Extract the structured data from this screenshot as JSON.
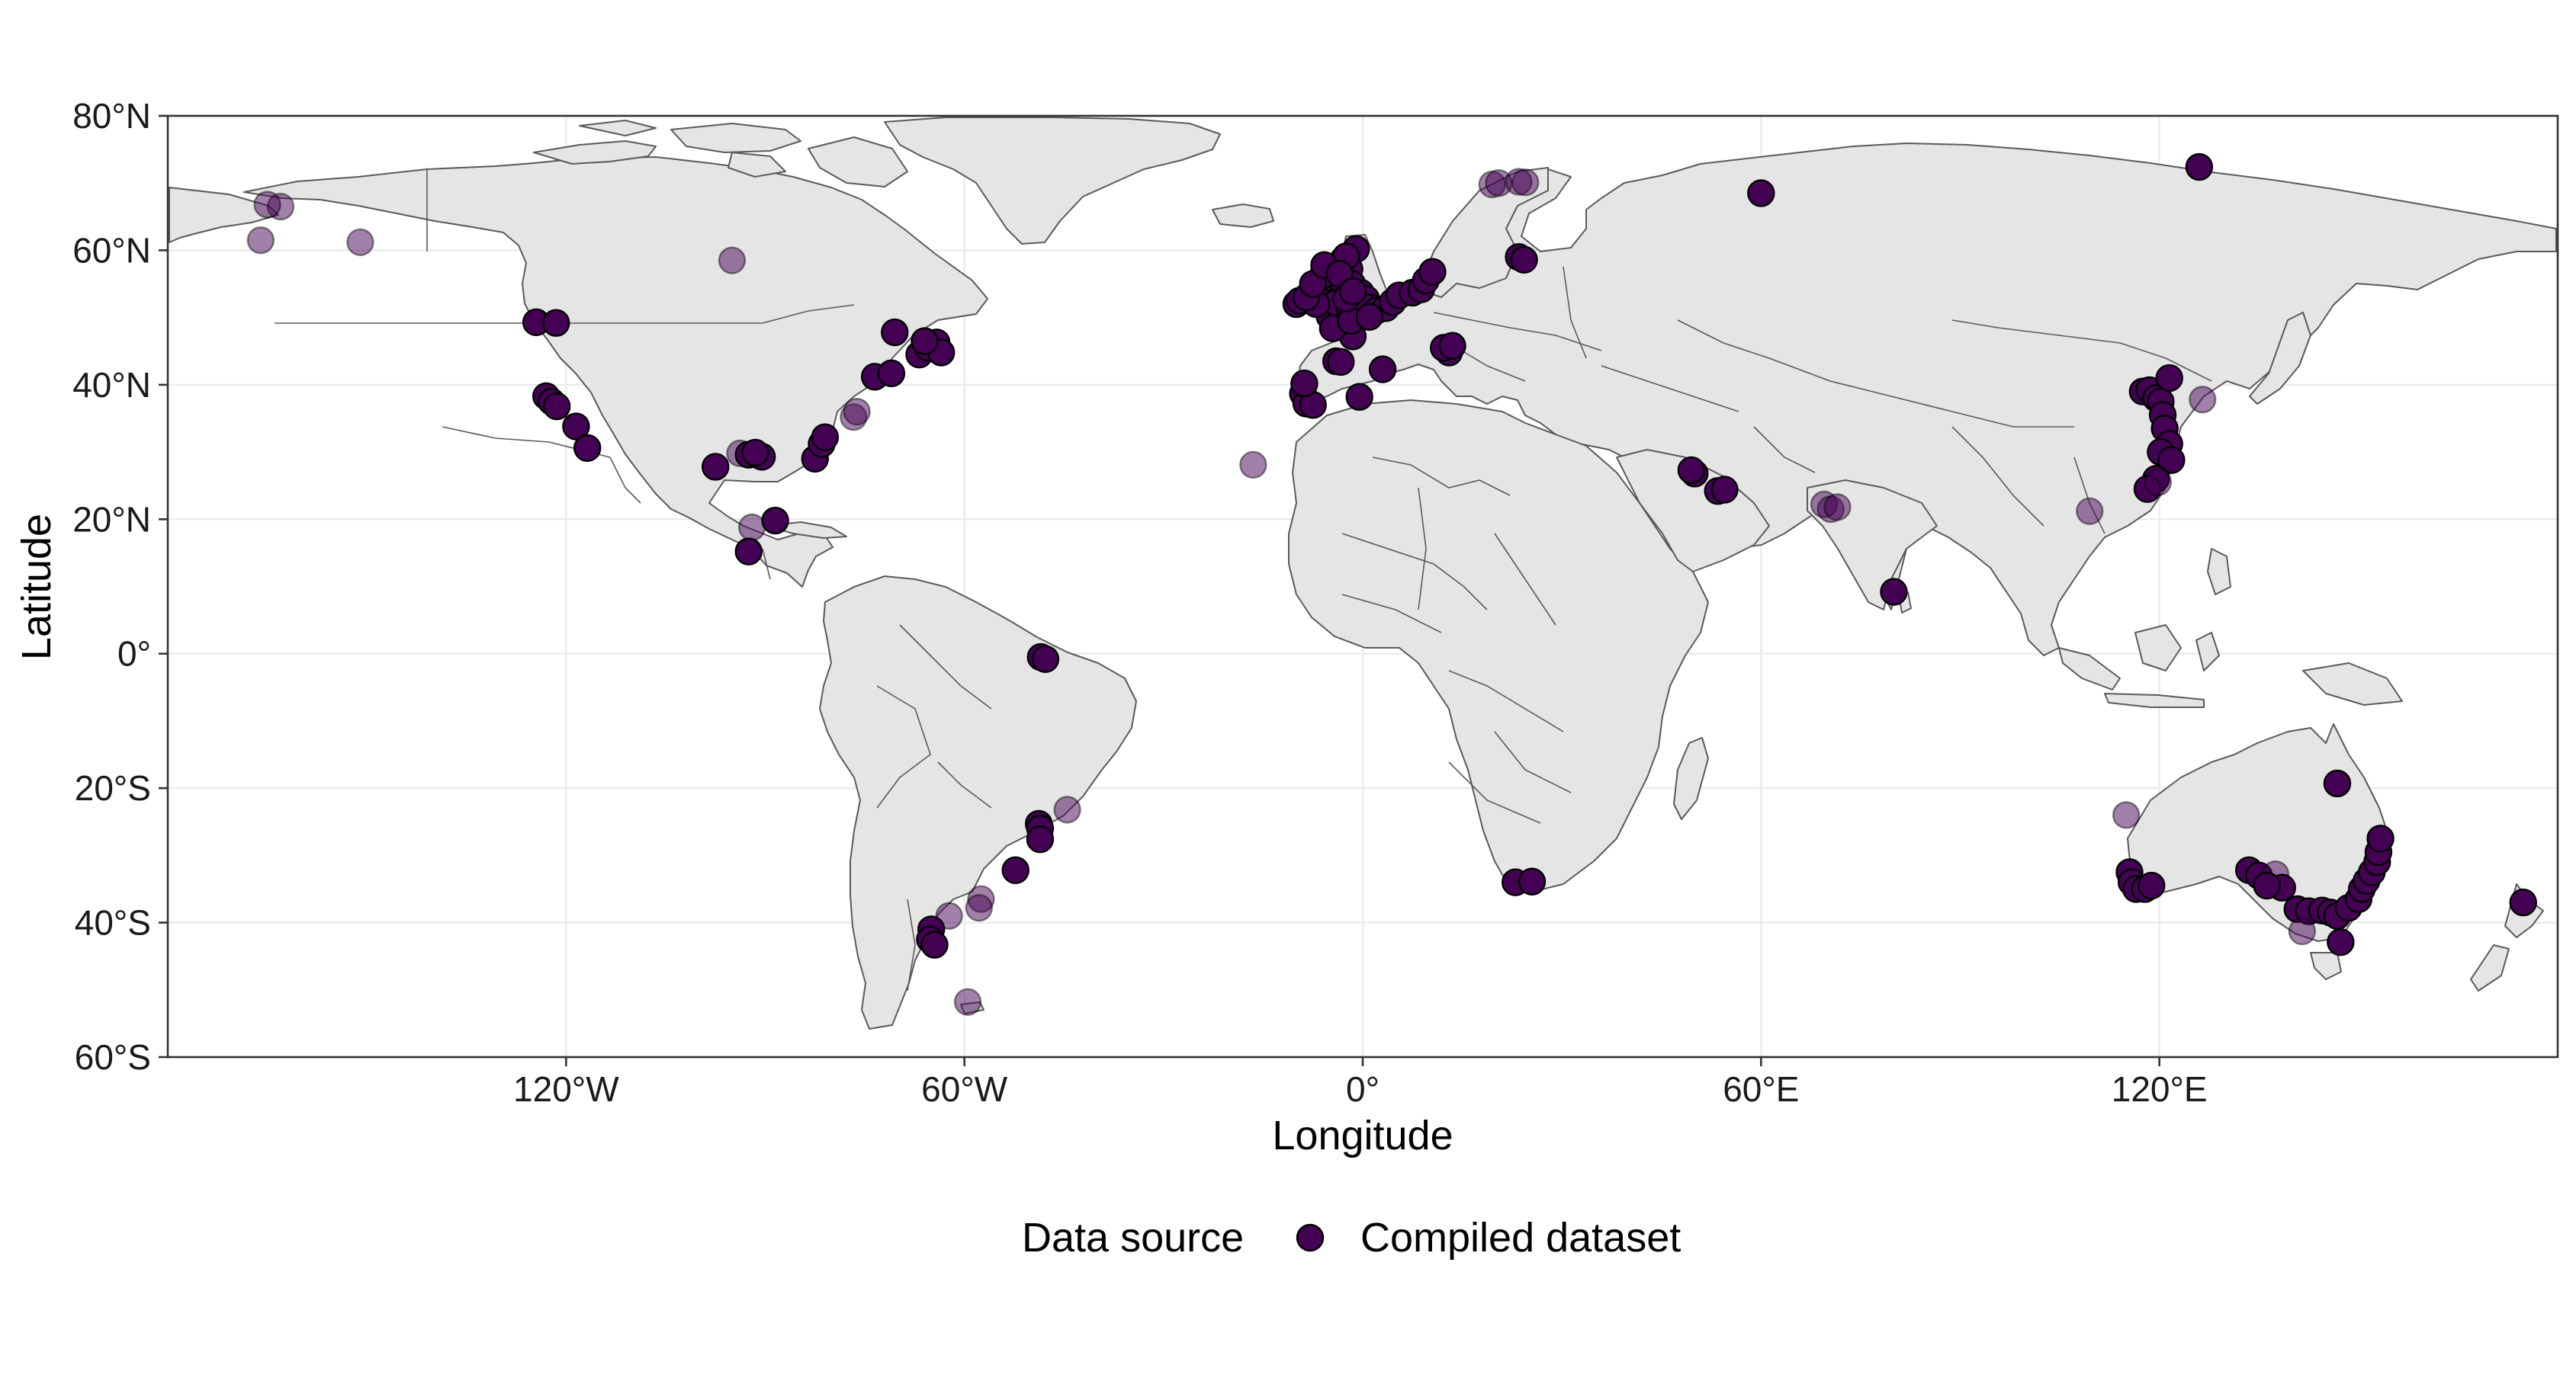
{
  "map": {
    "xlabel": "Longitude",
    "ylabel": "Latitude",
    "x_range": [
      -180,
      180
    ],
    "y_range": [
      -60,
      80
    ],
    "x_ticks": [
      {
        "value": -120,
        "label": "120°W"
      },
      {
        "value": -60,
        "label": "60°W"
      },
      {
        "value": 0,
        "label": "0°"
      },
      {
        "value": 60,
        "label": "60°E"
      },
      {
        "value": 120,
        "label": "120°E"
      }
    ],
    "y_ticks": [
      {
        "value": 80,
        "label": "80°N"
      },
      {
        "value": 60,
        "label": "60°N"
      },
      {
        "value": 40,
        "label": "40°N"
      },
      {
        "value": 20,
        "label": "20°N"
      },
      {
        "value": 0,
        "label": "0°"
      },
      {
        "value": -20,
        "label": "20°S"
      },
      {
        "value": -40,
        "label": "40°S"
      },
      {
        "value": -60,
        "label": "60°S"
      }
    ],
    "grid": true,
    "land_color": "#e5e5e5",
    "border_color": "#5a5a5a"
  },
  "legend": {
    "title": "Data source",
    "entries": [
      {
        "label": "Compiled dataset",
        "color": "#440154"
      }
    ],
    "position": "bottom"
  },
  "chart_data": {
    "type": "scatter",
    "series": [
      {
        "name": "Compiled dataset",
        "color": "#440154",
        "points": [
          {
            "lon": -163,
            "lat": 66.5,
            "o": 0.5
          },
          {
            "lon": -165,
            "lat": 66.8,
            "o": 0.5
          },
          {
            "lon": -166,
            "lat": 61.5,
            "o": 0.5
          },
          {
            "lon": -151,
            "lat": 61.2,
            "o": 0.5
          },
          {
            "lon": -95,
            "lat": 58.5,
            "o": 0.5
          },
          {
            "lon": -124.5,
            "lat": 49.3,
            "o": 1
          },
          {
            "lon": -121.5,
            "lat": 49.2,
            "o": 1
          },
          {
            "lon": -123,
            "lat": 38.3,
            "o": 1
          },
          {
            "lon": -122.2,
            "lat": 37.5,
            "o": 1
          },
          {
            "lon": -121.4,
            "lat": 36.8,
            "o": 1
          },
          {
            "lon": -118.5,
            "lat": 33.8,
            "o": 1
          },
          {
            "lon": -116.8,
            "lat": 30.6,
            "o": 1
          },
          {
            "lon": -97.5,
            "lat": 27.8,
            "o": 1
          },
          {
            "lon": -93.8,
            "lat": 29.8,
            "o": 0.5
          },
          {
            "lon": -92.5,
            "lat": 29.6,
            "o": 1
          },
          {
            "lon": -91.2,
            "lat": 29.6,
            "o": 1
          },
          {
            "lon": -90.5,
            "lat": 29.3,
            "o": 1
          },
          {
            "lon": -91.5,
            "lat": 29.9,
            "o": 1
          },
          {
            "lon": -82.5,
            "lat": 29.0,
            "o": 1
          },
          {
            "lon": -81.5,
            "lat": 31.2,
            "o": 1
          },
          {
            "lon": -81,
            "lat": 32.2,
            "o": 1
          },
          {
            "lon": -76.7,
            "lat": 35.2,
            "o": 0.5
          },
          {
            "lon": -76.2,
            "lat": 36,
            "o": 0.5
          },
          {
            "lon": -73.5,
            "lat": 41.2,
            "o": 1
          },
          {
            "lon": -71,
            "lat": 41.7,
            "o": 1
          },
          {
            "lon": -70.5,
            "lat": 47.8,
            "o": 1
          },
          {
            "lon": -66.8,
            "lat": 44.5,
            "o": 1
          },
          {
            "lon": -65.5,
            "lat": 45.5,
            "o": 1
          },
          {
            "lon": -64.2,
            "lat": 46.3,
            "o": 1
          },
          {
            "lon": -63.5,
            "lat": 44.8,
            "o": 1
          },
          {
            "lon": -66,
            "lat": 46.5,
            "o": 1
          },
          {
            "lon": -92,
            "lat": 18.8,
            "o": 0.5
          },
          {
            "lon": -88.5,
            "lat": 19.8,
            "o": 1
          },
          {
            "lon": -92.5,
            "lat": 15.2,
            "o": 1
          },
          {
            "lon": -48.5,
            "lat": -0.5,
            "o": 1
          },
          {
            "lon": -47.8,
            "lat": -0.8,
            "o": 1
          },
          {
            "lon": -48.8,
            "lat": -25.3,
            "o": 1
          },
          {
            "lon": -48.6,
            "lat": -26.0,
            "o": 1
          },
          {
            "lon": -48.6,
            "lat": -27.6,
            "o": 1
          },
          {
            "lon": -44.5,
            "lat": -23.2,
            "o": 0.5
          },
          {
            "lon": -52.3,
            "lat": -32.2,
            "o": 1
          },
          {
            "lon": -57.5,
            "lat": -36.5,
            "o": 0.5
          },
          {
            "lon": -57.8,
            "lat": -37.8,
            "o": 0.5
          },
          {
            "lon": -62.3,
            "lat": -39.0,
            "o": 0.5
          },
          {
            "lon": -65,
            "lat": -41.0,
            "o": 1
          },
          {
            "lon": -65.2,
            "lat": -42.5,
            "o": 1
          },
          {
            "lon": -64.5,
            "lat": -43.3,
            "o": 1
          },
          {
            "lon": -59.5,
            "lat": -51.8,
            "o": 0.5
          },
          {
            "lon": -16.5,
            "lat": 28.1,
            "o": 0.5
          },
          {
            "lon": -9,
            "lat": 38.7,
            "o": 1
          },
          {
            "lon": -8.5,
            "lat": 37.2,
            "o": 1
          },
          {
            "lon": -7.5,
            "lat": 37.0,
            "o": 1
          },
          {
            "lon": -8.8,
            "lat": 40.2,
            "o": 1
          },
          {
            "lon": -4,
            "lat": 43.5,
            "o": 1
          },
          {
            "lon": -3.3,
            "lat": 43.4,
            "o": 1
          },
          {
            "lon": -0.5,
            "lat": 38.2,
            "o": 1
          },
          {
            "lon": 3,
            "lat": 42.3,
            "o": 1
          },
          {
            "lon": -10,
            "lat": 52,
            "o": 1
          },
          {
            "lon": -9.5,
            "lat": 52.5,
            "o": 1
          },
          {
            "lon": -6.3,
            "lat": 53.3,
            "o": 1
          },
          {
            "lon": -5.5,
            "lat": 54.5,
            "o": 1
          },
          {
            "lon": -4.5,
            "lat": 55.8,
            "o": 1
          },
          {
            "lon": -5,
            "lat": 57.5,
            "o": 1
          },
          {
            "lon": -3,
            "lat": 58.5,
            "o": 1
          },
          {
            "lon": -2,
            "lat": 57.2,
            "o": 1
          },
          {
            "lon": -1.6,
            "lat": 55.0,
            "o": 1
          },
          {
            "lon": -0.3,
            "lat": 53.7,
            "o": 1
          },
          {
            "lon": 0.5,
            "lat": 52.8,
            "o": 1
          },
          {
            "lon": 1.3,
            "lat": 51.5,
            "o": 1
          },
          {
            "lon": -1.4,
            "lat": 50.8,
            "o": 1
          },
          {
            "lon": -3.5,
            "lat": 50.5,
            "o": 1
          },
          {
            "lon": -4.2,
            "lat": 51.5,
            "o": 1
          },
          {
            "lon": -5,
            "lat": 50.2,
            "o": 1
          },
          {
            "lon": -3,
            "lat": 53.4,
            "o": 1
          },
          {
            "lon": -2.8,
            "lat": 54.2,
            "o": 1
          },
          {
            "lon": -1,
            "lat": 60.2,
            "o": 1
          },
          {
            "lon": -2.5,
            "lat": 59.1,
            "o": 1
          },
          {
            "lon": -6,
            "lat": 56.3,
            "o": 1
          },
          {
            "lon": -4,
            "lat": 52.2,
            "o": 1
          },
          {
            "lon": -2,
            "lat": 51.4,
            "o": 1
          },
          {
            "lon": -0.8,
            "lat": 51.2,
            "o": 1
          },
          {
            "lon": 0.2,
            "lat": 51.6,
            "o": 1
          },
          {
            "lon": 2,
            "lat": 51.0,
            "o": 1
          },
          {
            "lon": 3.5,
            "lat": 51.4,
            "o": 1
          },
          {
            "lon": 4.5,
            "lat": 52.3,
            "o": 1
          },
          {
            "lon": 5.5,
            "lat": 53.3,
            "o": 1
          },
          {
            "lon": 7.5,
            "lat": 53.7,
            "o": 1
          },
          {
            "lon": 8.8,
            "lat": 54.2,
            "o": 1
          },
          {
            "lon": 9.5,
            "lat": 55.5,
            "o": 1
          },
          {
            "lon": 10.5,
            "lat": 56.8,
            "o": 1
          },
          {
            "lon": -1.5,
            "lat": 47.2,
            "o": 1
          },
          {
            "lon": -4.5,
            "lat": 48.4,
            "o": 1
          },
          {
            "lon": -1.8,
            "lat": 49.5,
            "o": 1
          },
          {
            "lon": 1,
            "lat": 50.1,
            "o": 1
          },
          {
            "lon": -7,
            "lat": 52.0,
            "o": 1
          },
          {
            "lon": -8.5,
            "lat": 53.0,
            "o": 1
          },
          {
            "lon": -7.5,
            "lat": 55.0,
            "o": 1
          },
          {
            "lon": -5.8,
            "lat": 57.8,
            "o": 1
          },
          {
            "lon": -3.5,
            "lat": 56.5,
            "o": 1
          },
          {
            "lon": -2.5,
            "lat": 52.8,
            "o": 1
          },
          {
            "lon": -1.5,
            "lat": 53.9,
            "o": 1
          },
          {
            "lon": 13,
            "lat": 44.8,
            "o": 1
          },
          {
            "lon": 12.2,
            "lat": 45.5,
            "o": 1
          },
          {
            "lon": 13.5,
            "lat": 45.8,
            "o": 1
          },
          {
            "lon": 19.5,
            "lat": 69.8,
            "o": 0.5
          },
          {
            "lon": 20.5,
            "lat": 70.0,
            "o": 0.5
          },
          {
            "lon": 23.5,
            "lat": 70.2,
            "o": 0.5
          },
          {
            "lon": 24.5,
            "lat": 70.1,
            "o": 0.5
          },
          {
            "lon": 23.5,
            "lat": 59.0,
            "o": 1
          },
          {
            "lon": 24.3,
            "lat": 58.6,
            "o": 1
          },
          {
            "lon": 60,
            "lat": 68.5,
            "o": 1
          },
          {
            "lon": 126,
            "lat": 72.4,
            "o": 1
          },
          {
            "lon": 23,
            "lat": -34.0,
            "o": 1
          },
          {
            "lon": 25.5,
            "lat": -33.9,
            "o": 1
          },
          {
            "lon": 50,
            "lat": 26.8,
            "o": 1
          },
          {
            "lon": 49.5,
            "lat": 27.3,
            "o": 1
          },
          {
            "lon": 53.5,
            "lat": 24.2,
            "o": 1
          },
          {
            "lon": 54.5,
            "lat": 24.4,
            "o": 1
          },
          {
            "lon": 69.5,
            "lat": 22.2,
            "o": 0.5
          },
          {
            "lon": 70.5,
            "lat": 21.5,
            "o": 0.5
          },
          {
            "lon": 71.5,
            "lat": 21.8,
            "o": 0.5
          },
          {
            "lon": 80,
            "lat": 9.2,
            "o": 1
          },
          {
            "lon": 109.5,
            "lat": 21.2,
            "o": 0.5
          },
          {
            "lon": 117.5,
            "lat": 39.0,
            "o": 1
          },
          {
            "lon": 118.5,
            "lat": 39.2,
            "o": 1
          },
          {
            "lon": 119.5,
            "lat": 38.0,
            "o": 1
          },
          {
            "lon": 120.2,
            "lat": 37.5,
            "o": 1
          },
          {
            "lon": 121.5,
            "lat": 41.0,
            "o": 1
          },
          {
            "lon": 120.5,
            "lat": 35.5,
            "o": 1
          },
          {
            "lon": 120.8,
            "lat": 33.5,
            "o": 1
          },
          {
            "lon": 121.5,
            "lat": 31.2,
            "o": 1
          },
          {
            "lon": 120.2,
            "lat": 30.0,
            "o": 1
          },
          {
            "lon": 121.8,
            "lat": 28.8,
            "o": 1
          },
          {
            "lon": 119.5,
            "lat": 26.0,
            "o": 1
          },
          {
            "lon": 118.2,
            "lat": 24.5,
            "o": 1
          },
          {
            "lon": 119.8,
            "lat": 25.5,
            "o": 0.5
          },
          {
            "lon": 126.5,
            "lat": 37.8,
            "o": 0.5
          },
          {
            "lon": 115,
            "lat": -24.0,
            "o": 0.5
          },
          {
            "lon": 115.5,
            "lat": -32.5,
            "o": 1
          },
          {
            "lon": 115.8,
            "lat": -34.0,
            "o": 1
          },
          {
            "lon": 116.5,
            "lat": -35.0,
            "o": 1
          },
          {
            "lon": 117.8,
            "lat": -35.0,
            "o": 1
          },
          {
            "lon": 118.8,
            "lat": -34.5,
            "o": 1
          },
          {
            "lon": 133.5,
            "lat": -32.2,
            "o": 1
          },
          {
            "lon": 135,
            "lat": -33.0,
            "o": 1
          },
          {
            "lon": 137.5,
            "lat": -32.8,
            "o": 0.5
          },
          {
            "lon": 138.5,
            "lat": -34.8,
            "o": 1
          },
          {
            "lon": 136.2,
            "lat": -34.5,
            "o": 1
          },
          {
            "lon": 140.8,
            "lat": -38.0,
            "o": 1
          },
          {
            "lon": 142.5,
            "lat": -38.3,
            "o": 1
          },
          {
            "lon": 144.5,
            "lat": -38.2,
            "o": 1
          },
          {
            "lon": 145.8,
            "lat": -38.5,
            "o": 1
          },
          {
            "lon": 146.8,
            "lat": -39.0,
            "o": 1
          },
          {
            "lon": 148.5,
            "lat": -37.8,
            "o": 1
          },
          {
            "lon": 150,
            "lat": -36.5,
            "o": 1
          },
          {
            "lon": 150.5,
            "lat": -35.0,
            "o": 1
          },
          {
            "lon": 151.2,
            "lat": -33.8,
            "o": 1
          },
          {
            "lon": 152,
            "lat": -32.5,
            "o": 1
          },
          {
            "lon": 152.8,
            "lat": -31.0,
            "o": 1
          },
          {
            "lon": 153,
            "lat": -29.5,
            "o": 1
          },
          {
            "lon": 153.3,
            "lat": -27.5,
            "o": 1
          },
          {
            "lon": 146.8,
            "lat": -19.3,
            "o": 1
          },
          {
            "lon": 147.3,
            "lat": -42.9,
            "o": 1
          },
          {
            "lon": 141.5,
            "lat": -41.3,
            "o": 0.5
          },
          {
            "lon": 174.8,
            "lat": -37.0,
            "o": 1
          }
        ]
      }
    ]
  }
}
